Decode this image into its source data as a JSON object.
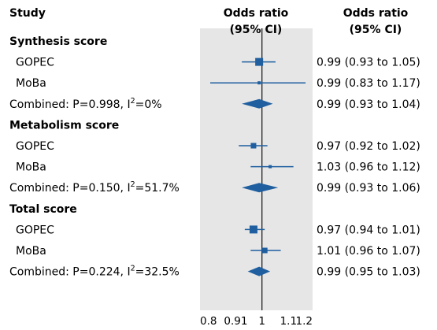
{
  "headers": {
    "study": "Study",
    "or_plot_line1": "Odds ratio",
    "or_plot_line2": "(95% CI)",
    "or_text_line1": "Odds ratio",
    "or_text_line2": "(95% CI)"
  },
  "colors": {
    "marker": "#1f5fa0",
    "panel": "#e6e6e6",
    "reference_line": "#222222",
    "text": "#1a1a1a"
  },
  "chart_data": {
    "type": "forest",
    "x_scale": "log",
    "xlim": [
      0.8,
      1.2
    ],
    "reference_value": 1,
    "x_ticks": [
      0.8,
      0.91,
      1,
      1.1,
      1.2
    ],
    "x_tick_labels": [
      "0.8",
      "0.91",
      "1",
      "1.1",
      "1.2"
    ],
    "sections": [
      {
        "title": "Synthesis score",
        "studies": [
          {
            "label": "GOPEC",
            "or": 0.99,
            "lo": 0.93,
            "hi": 1.05,
            "text": "0.99 (0.93 to 1.05)",
            "marker_size": "large"
          },
          {
            "label": "MoBa",
            "or": 0.99,
            "lo": 0.83,
            "hi": 1.17,
            "text": "0.99 (0.83 to 1.17)",
            "marker_size": "small"
          }
        ],
        "combined": {
          "label_prefix": "Combined: P=0.998, I",
          "label_sup": "2",
          "label_suffix": "=0%",
          "or": 0.99,
          "lo": 0.93,
          "hi": 1.04,
          "text": "0.99 (0.93 to 1.04)"
        }
      },
      {
        "title": "Metabolism score",
        "studies": [
          {
            "label": "GOPEC",
            "or": 0.97,
            "lo": 0.92,
            "hi": 1.02,
            "text": "0.97 (0.92 to 1.02)",
            "marker_size": "medium"
          },
          {
            "label": "MoBa",
            "or": 1.03,
            "lo": 0.96,
            "hi": 1.12,
            "text": "1.03 (0.96 to 1.12)",
            "marker_size": "small"
          }
        ],
        "combined": {
          "label_prefix": "Combined: P=0.150, I",
          "label_sup": "2",
          "label_suffix": "=51.7%",
          "or": 0.99,
          "lo": 0.93,
          "hi": 1.06,
          "text": "0.99 (0.93 to 1.06)"
        }
      },
      {
        "title": "Total score",
        "studies": [
          {
            "label": "GOPEC",
            "or": 0.97,
            "lo": 0.94,
            "hi": 1.01,
            "text": "0.97 (0.94 to 1.01)",
            "marker_size": "large"
          },
          {
            "label": "MoBa",
            "or": 1.01,
            "lo": 0.96,
            "hi": 1.07,
            "text": "1.01 (0.96 to 1.07)",
            "marker_size": "medium"
          }
        ],
        "combined": {
          "label_prefix": "Combined: P=0.224, I",
          "label_sup": "2",
          "label_suffix": "=32.5%",
          "or": 0.99,
          "lo": 0.95,
          "hi": 1.03,
          "text": "0.99 (0.95 to 1.03)"
        }
      }
    ]
  }
}
